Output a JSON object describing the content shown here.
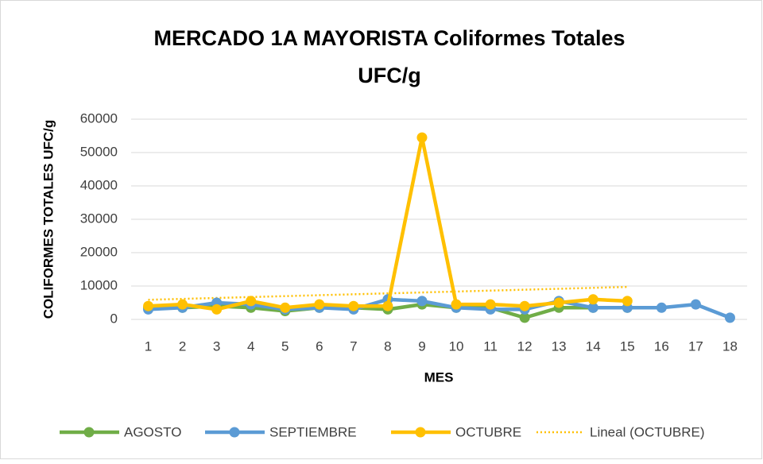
{
  "chart_data": {
    "type": "line",
    "title": "MERCADO 1A MAYORISTA  Coliformes Totales",
    "subtitle": "UFC/g",
    "x_label": "MES",
    "y_label": "COLIFORMES TOTALES UFC/g",
    "categories": [
      "1",
      "2",
      "3",
      "4",
      "5",
      "6",
      "7",
      "8",
      "9",
      "10",
      "11",
      "12",
      "13",
      "14",
      "15",
      "16",
      "17",
      "18"
    ],
    "ylim": [
      0,
      60000
    ],
    "yticks": [
      0,
      10000,
      20000,
      30000,
      40000,
      50000,
      60000
    ],
    "grid": true,
    "legend": "bottom",
    "series": [
      {
        "name": "AGOSTO",
        "color": "#70ad47",
        "values": [
          3500,
          3500,
          4000,
          3500,
          2500,
          3500,
          3500,
          3000,
          4500,
          3500,
          3500,
          500,
          3500,
          3500,
          3500,
          null,
          null,
          null
        ]
      },
      {
        "name": "SEPTIEMBRE",
        "color": "#5b9bd5",
        "values": [
          3000,
          3500,
          5000,
          4500,
          3000,
          3500,
          3000,
          6000,
          5500,
          3500,
          3000,
          3000,
          5500,
          3500,
          3500,
          3500,
          4500,
          500
        ]
      },
      {
        "name": "OCTUBRE",
        "color": "#ffc000",
        "values": [
          4000,
          4500,
          3000,
          5500,
          3500,
          4500,
          4000,
          4000,
          54500,
          4500,
          4500,
          4000,
          5000,
          6000,
          5500,
          null,
          null,
          null
        ]
      }
    ],
    "trendline": {
      "name": "Lineal (OCTUBRE)",
      "series": 2,
      "kind": "linear",
      "style": "dotted"
    }
  }
}
